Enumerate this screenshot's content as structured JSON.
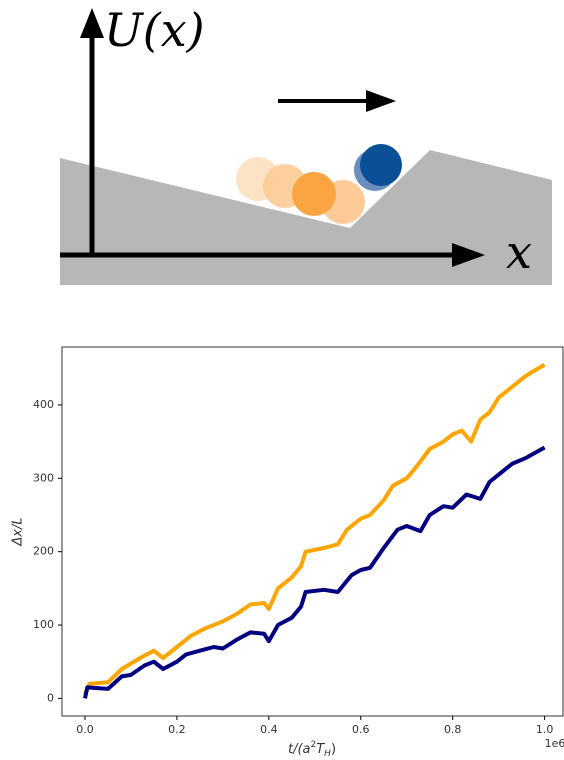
{
  "diagram": {
    "y_label": "U(x)",
    "x_label": "x"
  },
  "chart_data": {
    "type": "line",
    "x_label": [
      "t/(a",
      "2",
      "T",
      "H",
      ")"
    ],
    "y_label": "Δx/L",
    "x_offset_label": "1e6",
    "xlim": [
      -0.05,
      1.04
    ],
    "ylim": [
      -24,
      479
    ],
    "xticks": [
      {
        "value": 0,
        "label": "0.0"
      },
      {
        "value": 0.2,
        "label": "0.2"
      },
      {
        "value": 0.4,
        "label": "0.4"
      },
      {
        "value": 0.6,
        "label": "0.6"
      },
      {
        "value": 0.8,
        "label": "0.8"
      },
      {
        "value": 1,
        "label": "1.0"
      }
    ],
    "yticks": [
      0,
      100,
      200,
      300,
      400
    ],
    "series": [
      {
        "color": "#ffa500",
        "x": [
          0,
          0.01,
          0.05,
          0.08,
          0.12,
          0.15,
          0.17,
          0.2,
          0.23,
          0.26,
          0.3,
          0.33,
          0.36,
          0.39,
          0.4,
          0.42,
          0.45,
          0.47,
          0.48,
          0.52,
          0.55,
          0.57,
          0.6,
          0.62,
          0.65,
          0.67,
          0.7,
          0.72,
          0.75,
          0.78,
          0.8,
          0.82,
          0.84,
          0.86,
          0.88,
          0.9,
          0.93,
          0.96,
          1.0
        ],
        "values": [
          5,
          20,
          22,
          40,
          55,
          65,
          55,
          70,
          85,
          95,
          105,
          115,
          128,
          130,
          122,
          150,
          165,
          180,
          200,
          205,
          210,
          230,
          245,
          250,
          270,
          290,
          300,
          315,
          340,
          350,
          360,
          365,
          350,
          380,
          390,
          410,
          425,
          440,
          455
        ]
      },
      {
        "color": "#000080",
        "x": [
          0,
          0.005,
          0.05,
          0.08,
          0.1,
          0.13,
          0.15,
          0.17,
          0.2,
          0.22,
          0.25,
          0.28,
          0.3,
          0.33,
          0.36,
          0.39,
          0.4,
          0.42,
          0.45,
          0.47,
          0.48,
          0.52,
          0.55,
          0.58,
          0.6,
          0.62,
          0.65,
          0.68,
          0.7,
          0.73,
          0.75,
          0.78,
          0.8,
          0.83,
          0.86,
          0.88,
          0.9,
          0.93,
          0.96,
          1.0
        ],
        "values": [
          0,
          15,
          13,
          30,
          32,
          45,
          50,
          40,
          50,
          60,
          65,
          70,
          68,
          80,
          90,
          88,
          78,
          100,
          110,
          125,
          145,
          148,
          145,
          168,
          175,
          178,
          205,
          230,
          235,
          228,
          250,
          262,
          260,
          278,
          272,
          295,
          305,
          320,
          328,
          342
        ]
      }
    ]
  }
}
